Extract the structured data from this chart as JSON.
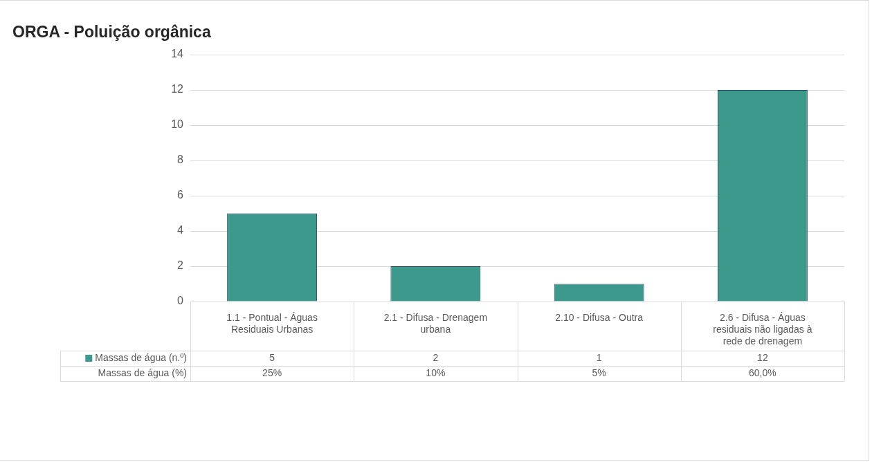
{
  "chart_data": {
    "type": "bar",
    "title": "ORGA - Poluição orgânica",
    "categories": [
      "1.1 - Pontual - Águas Residuais Urbanas",
      "2.1 - Difusa - Drenagem urbana",
      "2.10 - Difusa - Outra",
      "2.6 - Difusa - Águas residuais não ligadas à rede de drenagem"
    ],
    "series": [
      {
        "name": "Massas de água (n.º)",
        "color": "#3c9a8c",
        "values": [
          5,
          2,
          1,
          12
        ]
      }
    ],
    "ylim": [
      0,
      14
    ],
    "yticks": [
      0,
      2,
      4,
      6,
      8,
      10,
      12,
      14
    ],
    "grid": "y",
    "legend": "bottom",
    "data_labels": true,
    "annotations": [
      "Massas de água (%)",
      "25%",
      "10%",
      "5%",
      "60,0%"
    ]
  }
}
